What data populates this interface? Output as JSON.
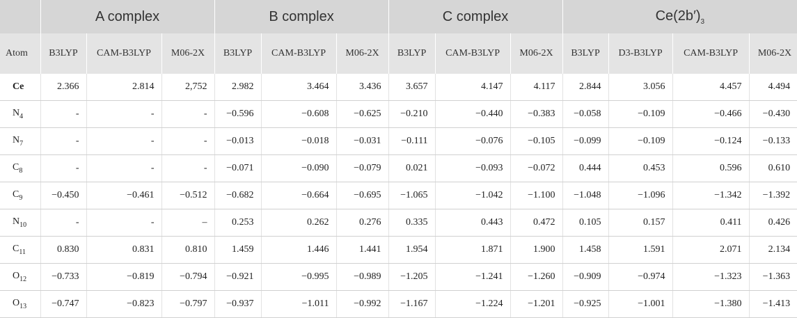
{
  "groups": [
    "A complex",
    "B complex",
    "C complex"
  ],
  "group4": {
    "base": "Ce(2b",
    "prime": "′",
    "close": ")",
    "sub": "3"
  },
  "methods": [
    "Atom",
    "B3LYP",
    "CAM-B3LYP",
    "M06-2X",
    "B3LYP",
    "CAM-B3LYP",
    "M06-2X",
    "B3LYP",
    "CAM-B3LYP",
    "M06-2X",
    "B3LYP",
    "D3-B3LYP",
    "CAM-B3LYP",
    "M06-2X"
  ],
  "rows": [
    {
      "atom": "Ce",
      "sub": "",
      "values": [
        "2.366",
        "2.814",
        "2,752",
        "2.982",
        "3.464",
        "3.436",
        "3.657",
        "4.147",
        "4.117",
        "2.844",
        "3.056",
        "4.457",
        "4.494"
      ]
    },
    {
      "atom": "N",
      "sub": "4",
      "values": [
        "-",
        "-",
        "-",
        "−0.596",
        "−0.608",
        "−0.625",
        "−0.210",
        "−0.440",
        "−0.383",
        "−0.058",
        "−0.109",
        "−0.466",
        "−0.430"
      ]
    },
    {
      "atom": "N",
      "sub": "7",
      "values": [
        "-",
        "-",
        "-",
        "−0.013",
        "−0.018",
        "−0.031",
        "−0.111",
        "−0.076",
        "−0.105",
        "−0.099",
        "−0.109",
        "−0.124",
        "−0.133"
      ]
    },
    {
      "atom": "C",
      "sub": "8",
      "values": [
        "-",
        "-",
        "-",
        "−0.071",
        "−0.090",
        "−0.079",
        "0.021",
        "−0.093",
        "−0.072",
        "0.444",
        "0.453",
        "0.596",
        "0.610"
      ]
    },
    {
      "atom": "C",
      "sub": "9",
      "values": [
        "−0.450",
        "−0.461",
        "−0.512",
        "−0.682",
        "−0.664",
        "−0.695",
        "−1.065",
        "−1.042",
        "−1.100",
        "−1.048",
        "−1.096",
        "−1.342",
        "−1.392"
      ]
    },
    {
      "atom": "N",
      "sub": "10",
      "values": [
        "-",
        "-",
        "–",
        "0.253",
        "0.262",
        "0.276",
        "0.335",
        "0.443",
        "0.472",
        "0.105",
        "0.157",
        "0.411",
        "0.426"
      ]
    },
    {
      "atom": "C",
      "sub": "11",
      "values": [
        "0.830",
        "0.831",
        "0.810",
        "1.459",
        "1.446",
        "1.441",
        "1.954",
        "1.871",
        "1.900",
        "1.458",
        "1.591",
        "2.071",
        "2.134"
      ]
    },
    {
      "atom": "O",
      "sub": "12",
      "values": [
        "−0.733",
        "−0.819",
        "−0.794",
        "−0.921",
        "−0.995",
        "−0.989",
        "−1.205",
        "−1.241",
        "−1.260",
        "−0.909",
        "−0.974",
        "−1.323",
        "−1.363"
      ]
    },
    {
      "atom": "O",
      "sub": "13",
      "values": [
        "−0.747",
        "−0.823",
        "−0.797",
        "−0.937",
        "−1.011",
        "−0.992",
        "−1.167",
        "−1.224",
        "−1.201",
        "−0.925",
        "−1.001",
        "−1.380",
        "−1.413"
      ]
    }
  ]
}
